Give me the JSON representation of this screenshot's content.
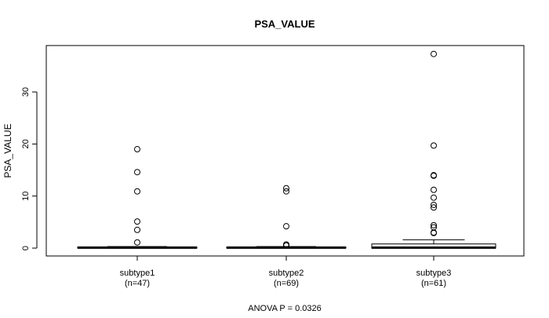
{
  "chart_data": {
    "type": "boxplot",
    "title": "PSA_VALUE",
    "xlabel": "ANOVA P = 0.0326",
    "ylabel": "PSA_VALUE",
    "ylim": [
      -1.5,
      38.5
    ],
    "yticks": [
      0,
      10,
      20,
      30
    ],
    "grid": false,
    "categories": [
      {
        "name": "subtype1",
        "n_label": "(n=47)"
      },
      {
        "name": "subtype2",
        "n_label": "(n=69)"
      },
      {
        "name": "subtype3",
        "n_label": "(n=61)"
      }
    ],
    "boxes": [
      {
        "whisker_low": 0,
        "q1": 0,
        "median": 0.1,
        "q3": 0.2,
        "whisker_high": 0.3,
        "outliers": [
          19.0,
          14.6,
          10.9,
          5.1,
          3.5,
          1.1
        ]
      },
      {
        "whisker_low": 0,
        "q1": 0,
        "median": 0.1,
        "q3": 0.2,
        "whisker_high": 0.3,
        "outliers": [
          11.5,
          10.9,
          4.2,
          0.7,
          0.5
        ]
      },
      {
        "whisker_low": 0,
        "q1": 0,
        "median": 0.1,
        "q3": 0.8,
        "whisker_high": 1.6,
        "outliers": [
          37.3,
          19.7,
          14.0,
          13.9,
          11.2,
          9.7,
          8.3,
          7.8,
          4.4,
          4.0,
          3.0,
          2.9
        ]
      }
    ]
  }
}
